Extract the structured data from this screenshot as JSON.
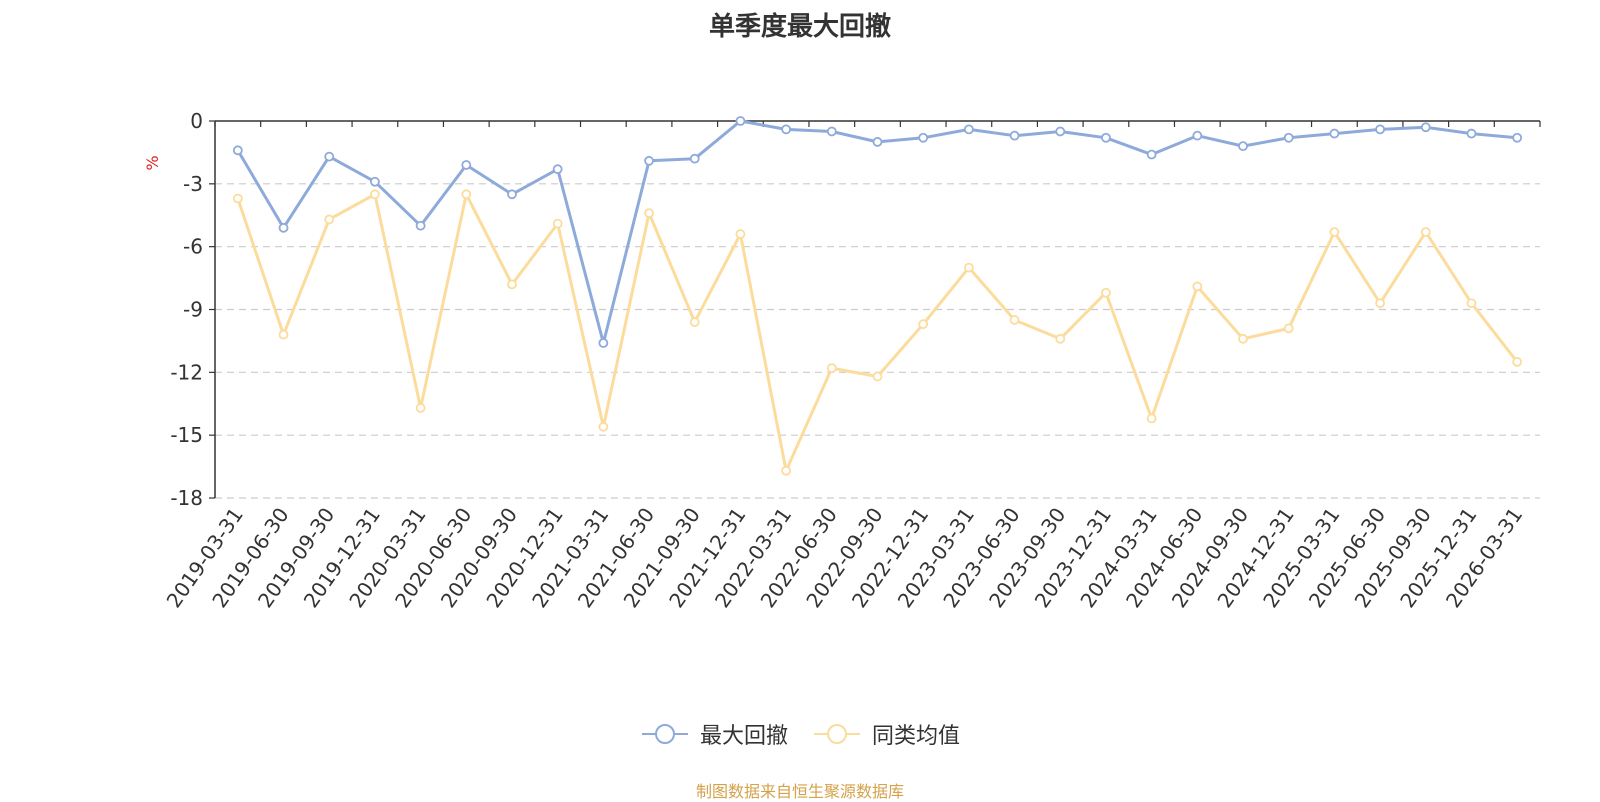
{
  "title": "单季度最大回撤",
  "source_note": "制图数据来自恒生聚源数据库",
  "chart_data": {
    "type": "line",
    "title": "单季度最大回撤",
    "ylabel": "%",
    "xlabel": "",
    "ylim": [
      -18,
      0
    ],
    "yticks": [
      0,
      -3,
      -6,
      -9,
      -12,
      -15,
      -18
    ],
    "grid": true,
    "legend_position": "bottom-center",
    "categories": [
      "2019-03-31",
      "2019-06-30",
      "2019-09-30",
      "2019-12-31",
      "2020-03-31",
      "2020-06-30",
      "2020-09-30",
      "2020-12-31",
      "2021-03-31",
      "2021-06-30",
      "2021-09-30",
      "2021-12-31",
      "2022-03-31",
      "2022-06-30",
      "2022-09-30",
      "2022-12-31",
      "2023-03-31",
      "2023-06-30",
      "2023-09-30",
      "2023-12-31",
      "2024-03-31",
      "2024-06-30",
      "2024-09-30",
      "2024-12-31",
      "2025-03-31",
      "2025-06-30",
      "2025-09-30",
      "2025-12-31",
      "2026-03-31"
    ],
    "series": [
      {
        "name": "最大回撤",
        "color": "#8eaadb",
        "values": [
          -1.4,
          -5.1,
          -1.7,
          -2.9,
          -5.0,
          -2.1,
          -3.5,
          -2.3,
          -10.6,
          -1.9,
          -1.8,
          0.0,
          -0.4,
          -0.5,
          -1.0,
          -0.8,
          -0.4,
          -0.7,
          -0.5,
          -0.8,
          -1.6,
          -0.7,
          -1.2,
          -0.8,
          -0.6,
          -0.4,
          -0.3,
          -0.6,
          -0.8
        ]
      },
      {
        "name": "同类均值",
        "color": "#fcdc9c",
        "values": [
          -3.7,
          -10.2,
          -4.7,
          -3.5,
          -13.7,
          -3.5,
          -7.8,
          -4.9,
          -14.6,
          -4.4,
          -9.6,
          -5.4,
          -16.7,
          -11.8,
          -12.2,
          -9.7,
          -7.0,
          -9.5,
          -10.4,
          -8.2,
          -14.2,
          -7.9,
          -10.4,
          -9.9,
          -5.3,
          -8.7,
          -5.3,
          -8.7,
          -11.5
        ]
      }
    ]
  }
}
